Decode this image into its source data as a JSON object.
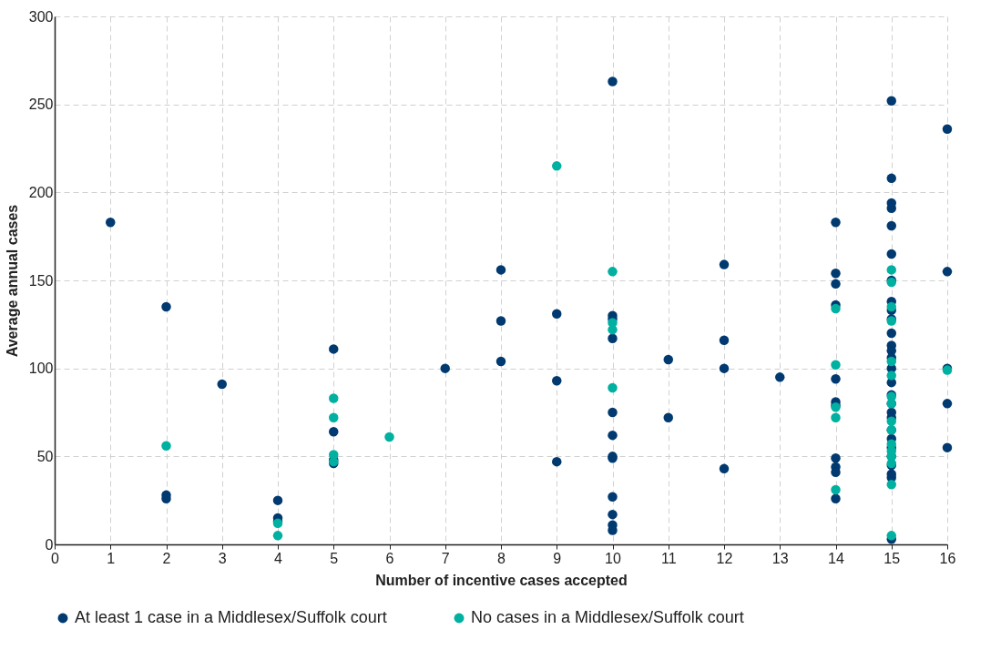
{
  "chart_data": {
    "type": "scatter",
    "xlabel": "Number of incentive cases accepted",
    "ylabel": "Average annual cases",
    "xlim": [
      0,
      16
    ],
    "xticks": [
      0,
      1,
      2,
      3,
      4,
      5,
      6,
      7,
      8,
      9,
      10,
      11,
      12,
      13,
      14,
      15,
      16
    ],
    "ylim": [
      0,
      300
    ],
    "yticks": [
      0,
      50,
      100,
      150,
      200,
      250,
      300
    ],
    "grid": true,
    "legend": "bottom",
    "marker": "circle",
    "series": [
      {
        "name": "At least 1 case in a Middlesex/Suffolk court",
        "color": "#003a70",
        "x": [
          1,
          2,
          2,
          2,
          3,
          4,
          4,
          4,
          5,
          5,
          5,
          5,
          7,
          8,
          8,
          8,
          9,
          9,
          9,
          10,
          10,
          10,
          10,
          10,
          10,
          10,
          10,
          10,
          10,
          10,
          10,
          11,
          11,
          12,
          12,
          12,
          12,
          13,
          14,
          14,
          14,
          14,
          14,
          14,
          14,
          14,
          14,
          14,
          14,
          15,
          15,
          15,
          15,
          15,
          15,
          15,
          15,
          15,
          15,
          15,
          15,
          15,
          15,
          15,
          15,
          15,
          15,
          15,
          15,
          15,
          15,
          15,
          15,
          15,
          15,
          15,
          15,
          16,
          16,
          16,
          16,
          16
        ],
        "values": [
          183,
          135,
          28,
          26,
          91,
          25,
          15,
          13,
          111,
          64,
          46,
          48,
          100,
          156,
          127,
          104,
          131,
          93,
          47,
          263,
          130,
          128,
          117,
          75,
          62,
          50,
          49,
          27,
          17,
          11,
          8,
          105,
          72,
          159,
          116,
          100,
          43,
          95,
          183,
          154,
          148,
          136,
          94,
          81,
          79,
          49,
          44,
          41,
          26,
          252,
          208,
          194,
          191,
          181,
          165,
          150,
          138,
          133,
          128,
          120,
          113,
          110,
          106,
          100,
          92,
          85,
          80,
          75,
          72,
          65,
          60,
          55,
          50,
          45,
          40,
          38,
          3,
          236,
          155,
          100,
          80,
          55
        ]
      },
      {
        "name": "No cases in a Middlesex/Suffolk court",
        "color": "#00b0a0",
        "x": [
          2,
          4,
          4,
          5,
          5,
          5,
          5,
          6,
          9,
          10,
          10,
          10,
          10,
          14,
          14,
          14,
          14,
          14,
          15,
          15,
          15,
          15,
          15,
          15,
          15,
          15,
          15,
          15,
          15,
          15,
          15,
          15,
          15,
          15,
          16
        ],
        "values": [
          56,
          12,
          5,
          83,
          72,
          51,
          47,
          61,
          215,
          155,
          126,
          122,
          89,
          134,
          102,
          78,
          72,
          31,
          156,
          149,
          135,
          127,
          104,
          96,
          84,
          80,
          70,
          65,
          57,
          53,
          50,
          46,
          34,
          5,
          99
        ]
      }
    ]
  }
}
